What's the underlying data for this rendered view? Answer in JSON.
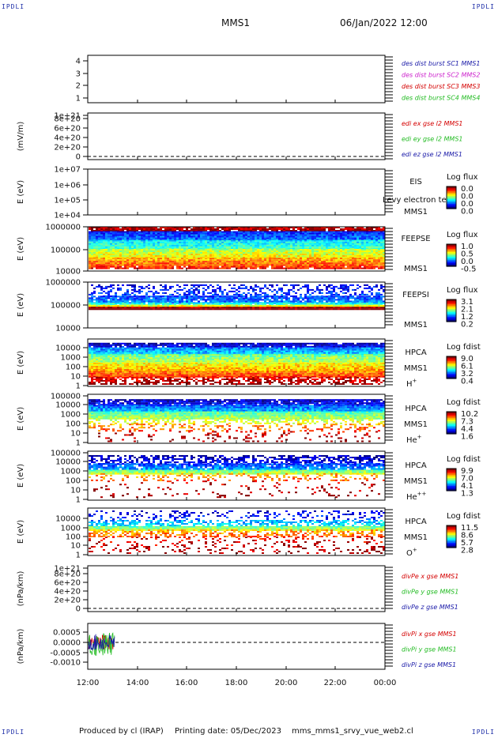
{
  "corner_label": "IPDLI",
  "header": {
    "spacecraft": "MMS1",
    "date": "06/Jan/2022 12:00"
  },
  "footer": {
    "produced_by": "Produced by cl (IRAP)",
    "printing_date": "Printing date: 05/Dec/2023",
    "filename": "mms_mms1_srvy_vue_web2.cl"
  },
  "colors": {
    "red": "#d40000",
    "green": "#22bb22",
    "blue": "#1a1aa8",
    "magenta": "#cc22cc"
  },
  "chart_data": {
    "type": "heatmap",
    "x_tick_labels": [
      "12:00",
      "14:00",
      "16:00",
      "18:00",
      "20:00",
      "22:00",
      "00:00"
    ],
    "panels": [
      {
        "kind": "line",
        "ylabel": "",
        "ytick_labels": [
          "1",
          "2",
          "3",
          "4"
        ],
        "legend": [
          {
            "text": "des dist burst SC1 MMS1",
            "color": "blue"
          },
          {
            "text": "des dist burst SC2 MMS2",
            "color": "magenta"
          },
          {
            "text": "des dist burst SC3 MMS3",
            "color": "red"
          },
          {
            "text": "des dist burst SC4 MMS4",
            "color": "green"
          }
        ]
      },
      {
        "kind": "line",
        "ylabel": "(mV/m)",
        "ytick_labels": [
          "0",
          "2e+20",
          "4e+20",
          "6e+20",
          "8e+20",
          "1e+21"
        ],
        "zero_line": true,
        "legend": [
          {
            "text": "edi ex gse l2 MMS1",
            "color": "red"
          },
          {
            "text": "edi ey gse l2 MMS1",
            "color": "green"
          },
          {
            "text": "edi ez gse l2 MMS1",
            "color": "blue"
          }
        ]
      },
      {
        "kind": "spectrogram",
        "ylabel": "E (eV)",
        "ytick_labels": [
          "1e+04",
          "1e+05",
          "1e+06",
          "1e+07"
        ],
        "name_lines": [
          "EIS",
          "MMS1"
        ],
        "overlap_text": "Levy electron te",
        "colorbar": {
          "title": "Log flux",
          "ticks": [
            "0.0",
            "0.0",
            "0.0",
            "0.0"
          ]
        }
      },
      {
        "kind": "spectrogram",
        "ylabel": "E (eV)",
        "ytick_labels": [
          "10000",
          "100000",
          "1000000"
        ],
        "name_lines": [
          "FEEPSE",
          "MMS1"
        ],
        "colorbar": {
          "title": "Log flux",
          "ticks": [
            "1.0",
            "0.5",
            "0.0",
            "-0.5"
          ]
        }
      },
      {
        "kind": "spectrogram",
        "ylabel": "E (eV)",
        "ytick_labels": [
          "10000",
          "100000",
          "1000000"
        ],
        "name_lines": [
          "FEEPSI",
          "MMS1"
        ],
        "colorbar": {
          "title": "Log flux",
          "ticks": [
            "3.1",
            "2.1",
            "1.2",
            "0.2"
          ]
        }
      },
      {
        "kind": "spectrogram",
        "ylabel": "E (eV)",
        "ytick_labels": [
          "1",
          "10",
          "100",
          "1000",
          "10000"
        ],
        "name_lines": [
          "HPCA",
          "MMS1"
        ],
        "species": "H",
        "species_sup": "+",
        "colorbar": {
          "title": "Log fdist",
          "ticks": [
            "9.0",
            "6.1",
            "3.2",
            "0.4"
          ]
        }
      },
      {
        "kind": "spectrogram",
        "ylabel": "E (eV)",
        "ytick_labels": [
          "1",
          "10",
          "100",
          "1000",
          "10000",
          "100000"
        ],
        "name_lines": [
          "HPCA",
          "MMS1"
        ],
        "species": "He",
        "species_sup": "+",
        "colorbar": {
          "title": "Log fdist",
          "ticks": [
            "10.2",
            "7.3",
            "4.4",
            "1.6"
          ]
        }
      },
      {
        "kind": "spectrogram",
        "ylabel": "E (eV)",
        "ytick_labels": [
          "1",
          "10",
          "100",
          "1000",
          "10000",
          "100000"
        ],
        "name_lines": [
          "HPCA",
          "MMS1"
        ],
        "species": "He",
        "species_sup": "++",
        "colorbar": {
          "title": "Log fdist",
          "ticks": [
            "9.9",
            "7.0",
            "4.1",
            "1.3"
          ]
        }
      },
      {
        "kind": "spectrogram",
        "ylabel": "E (eV)",
        "ytick_labels": [
          "1",
          "10",
          "100",
          "1000",
          "10000"
        ],
        "name_lines": [
          "HPCA",
          "MMS1"
        ],
        "species": "O",
        "species_sup": "+",
        "colorbar": {
          "title": "Log fdist",
          "ticks": [
            "11.5",
            "8.6",
            "5.7",
            "2.8"
          ]
        }
      },
      {
        "kind": "line",
        "ylabel": "(nPa/km)",
        "ytick_labels": [
          "0",
          "2e+20",
          "4e+20",
          "6e+20",
          "8e+20",
          "1e+21"
        ],
        "zero_line": true,
        "legend": [
          {
            "text": "divPe x gse MMS1",
            "color": "red"
          },
          {
            "text": "divPe y gse MMS1",
            "color": "green"
          },
          {
            "text": "divPe z gse MMS1",
            "color": "blue"
          }
        ]
      },
      {
        "kind": "line",
        "ylabel": "(nPa/km)",
        "ytick_labels": [
          "-0.0010",
          "-0.0005",
          "0.0000",
          "0.0005"
        ],
        "zero_line": true,
        "data_x_range": [
          "12:00",
          "13:05"
        ],
        "data_y_range": [
          -0.0011,
          0.0006
        ],
        "legend": [
          {
            "text": "divPi x gse MMS1",
            "color": "red"
          },
          {
            "text": "divPi y gse MMS1",
            "color": "green"
          },
          {
            "text": "divPi z gse MMS1",
            "color": "blue"
          }
        ]
      }
    ]
  }
}
